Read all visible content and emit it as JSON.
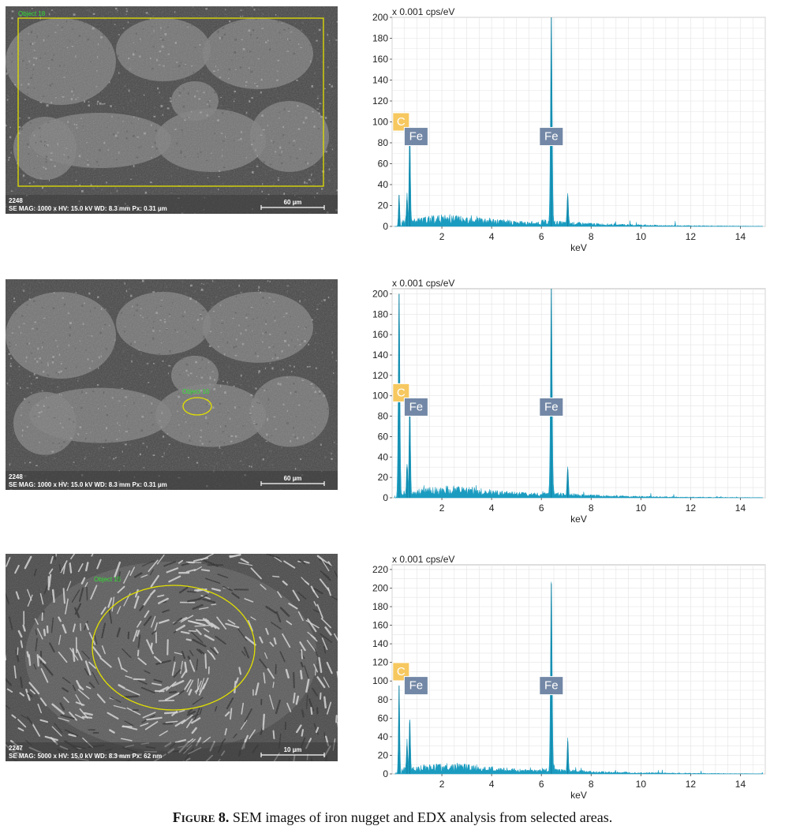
{
  "figure": {
    "label": "Figure 8.",
    "text": "SEM images of iron nugget and EDX analysis from selected areas."
  },
  "sem_images": [
    {
      "id": "2248",
      "info": "SE  MAG: 1000 x  HV: 15.0 kV  WD: 8.3 mm  Px: 0.31 µm",
      "scalebar": "60 µm",
      "object_label": "Object 18",
      "selection": "rectangle",
      "texture": "mottled"
    },
    {
      "id": "2248",
      "info": "SE  MAG: 1000 x  HV: 15.0 kV  WD: 8.3 mm  Px: 0.31 µm",
      "scalebar": "60 µm",
      "object_label": "Object 16",
      "selection": "ellipse-small",
      "texture": "mottled"
    },
    {
      "id": "2247",
      "info": "SE  MAG: 5000 x  HV: 15.0 kV  WD: 8.3 mm  Px: 62 nm",
      "scalebar": "10 µm",
      "object_label": "Object 15",
      "selection": "ellipse-large",
      "texture": "lamellar"
    }
  ],
  "colors": {
    "spectrum": "#1a9cc0",
    "c_label_bg": "#f6c85f",
    "fe_label_bg": "#7388a6",
    "selection": "#e2e000",
    "object_text": "#33dd33"
  },
  "chart_data": [
    {
      "type": "area",
      "ylabel": "x 0.001 cps/eV",
      "xlabel": "keV",
      "xlim": [
        0,
        15
      ],
      "ylim": [
        0,
        200
      ],
      "yticks": [
        0,
        20,
        40,
        60,
        80,
        100,
        120,
        140,
        160,
        180,
        200
      ],
      "xticks": [
        2,
        4,
        6,
        8,
        10,
        12,
        14
      ],
      "grid": true,
      "peaks": [
        {
          "x": 0.28,
          "y": 30
        },
        {
          "x": 0.6,
          "y": 25
        },
        {
          "x": 0.71,
          "y": 95
        },
        {
          "x": 6.4,
          "y": 200
        },
        {
          "x": 7.06,
          "y": 29
        }
      ],
      "element_labels": [
        {
          "label": "C",
          "x": 0.28,
          "y": 100
        },
        {
          "label": "Fe",
          "x": 0.71,
          "y": 86
        },
        {
          "label": "Fe",
          "x": 6.4,
          "y": 86
        }
      ]
    },
    {
      "type": "area",
      "ylabel": "x 0.001 cps/eV",
      "xlabel": "keV",
      "xlim": [
        0,
        15
      ],
      "ylim": [
        0,
        205
      ],
      "yticks": [
        0,
        20,
        40,
        60,
        80,
        100,
        120,
        140,
        160,
        180,
        200
      ],
      "xticks": [
        2,
        4,
        6,
        8,
        10,
        12,
        14
      ],
      "grid": true,
      "peaks": [
        {
          "x": 0.28,
          "y": 200
        },
        {
          "x": 0.6,
          "y": 30
        },
        {
          "x": 0.71,
          "y": 98
        },
        {
          "x": 6.4,
          "y": 205
        },
        {
          "x": 7.06,
          "y": 28
        }
      ],
      "element_labels": [
        {
          "label": "C",
          "x": 0.28,
          "y": 103
        },
        {
          "label": "Fe",
          "x": 0.71,
          "y": 89
        },
        {
          "label": "Fe",
          "x": 6.4,
          "y": 89
        }
      ]
    },
    {
      "type": "area",
      "ylabel": "x 0.001 cps/eV",
      "xlabel": "keV",
      "xlim": [
        0,
        15
      ],
      "ylim": [
        0,
        225
      ],
      "yticks": [
        0,
        20,
        40,
        60,
        80,
        100,
        120,
        140,
        160,
        180,
        200,
        220
      ],
      "xticks": [
        2,
        4,
        6,
        8,
        10,
        12,
        14
      ],
      "grid": true,
      "peaks": [
        {
          "x": 0.28,
          "y": 95
        },
        {
          "x": 0.6,
          "y": 30
        },
        {
          "x": 0.71,
          "y": 55
        },
        {
          "x": 6.4,
          "y": 205
        },
        {
          "x": 7.06,
          "y": 35
        }
      ],
      "element_labels": [
        {
          "label": "C",
          "x": 0.28,
          "y": 110
        },
        {
          "label": "Fe",
          "x": 0.71,
          "y": 95
        },
        {
          "label": "Fe",
          "x": 6.4,
          "y": 95
        }
      ]
    }
  ]
}
